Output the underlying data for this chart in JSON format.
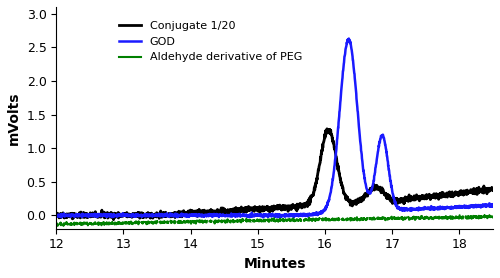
{
  "xlim": [
    12,
    18.5
  ],
  "ylim": [
    -0.2,
    3.1
  ],
  "xlabel": "Minutes",
  "ylabel": "mVolts",
  "yticks": [
    0.0,
    0.5,
    1.0,
    1.5,
    2.0,
    2.5,
    3.0
  ],
  "xticks": [
    12,
    13,
    14,
    15,
    16,
    17,
    18
  ],
  "legend": [
    {
      "label": "Conjugate 1/20",
      "color": "#000000",
      "lw": 2.0
    },
    {
      "label": "GOD",
      "color": "#1a1aff",
      "lw": 1.8
    },
    {
      "label": "Aldehyde derivative of PEG",
      "color": "#008000",
      "lw": 1.5
    }
  ],
  "background_color": "#ffffff",
  "title_fontsize": 10,
  "axis_fontsize": 10
}
